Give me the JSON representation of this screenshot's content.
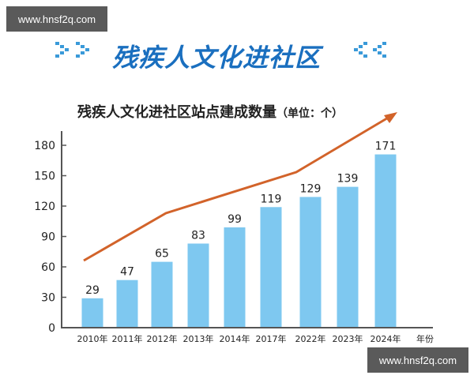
{
  "watermark": {
    "top": "www.hnsf2q.com",
    "bottom": "www.hnsf2q.com"
  },
  "banner": {
    "title": "残疾人文化进社区",
    "left_decor": "double-chevron-right-icon",
    "right_decor": "double-chevron-left-icon",
    "color": "#1a6fbf"
  },
  "chart_title": {
    "main": "残疾人文化进社区站点建成数量",
    "unit": "（单位：个）"
  },
  "colors": {
    "bar": "#7ec8f0",
    "trend": "#d2632a",
    "axis": "#555555"
  },
  "chart_data": {
    "type": "bar",
    "title": "残疾人文化进社区站点建成数量（单位：个）",
    "xlabel": "年份",
    "ylabel": "",
    "categories": [
      "2010年",
      "2011年",
      "2012年",
      "2013年",
      "2014年",
      "2017年",
      "2022年",
      "2023年",
      "2024年"
    ],
    "values": [
      29,
      47,
      65,
      83,
      99,
      119,
      129,
      139,
      171
    ],
    "data_labels": [
      "29",
      "47",
      "65",
      "83",
      "99",
      "119",
      "129",
      "139",
      "171"
    ],
    "yticks": [
      "0",
      "30",
      "60",
      "90",
      "120",
      "150",
      "180"
    ],
    "ylim": [
      0,
      180
    ],
    "grid": false,
    "legend": null,
    "annotations": [
      "orange upward trend arrow above bars"
    ]
  }
}
